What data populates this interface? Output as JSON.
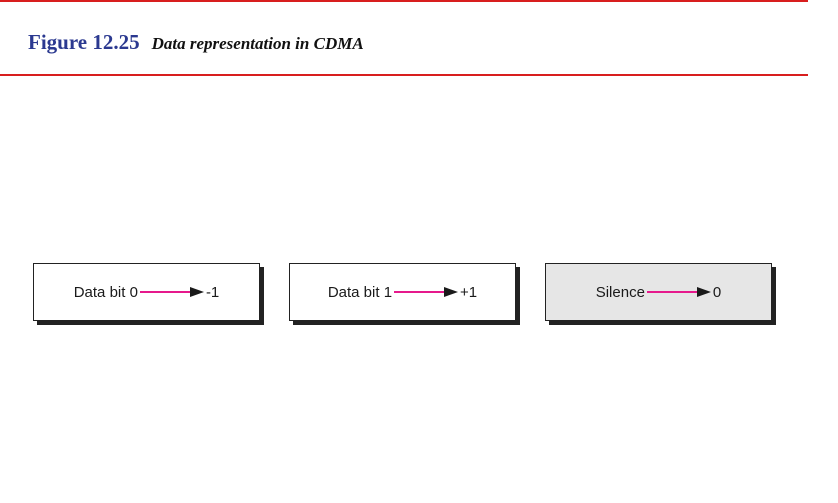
{
  "figure": {
    "number": "Figure 12.25",
    "caption": "Data representation in CDMA"
  },
  "colors": {
    "rule": "#d81e1e",
    "title_number": "#2b3990",
    "arrow": "#e6198c",
    "shaded_box": "#e6e6e6"
  },
  "mappings": [
    {
      "input": "Data bit 0",
      "output": "-1"
    },
    {
      "input": "Data bit 1",
      "output": "+1"
    },
    {
      "input": "Silence",
      "output": "0"
    }
  ]
}
